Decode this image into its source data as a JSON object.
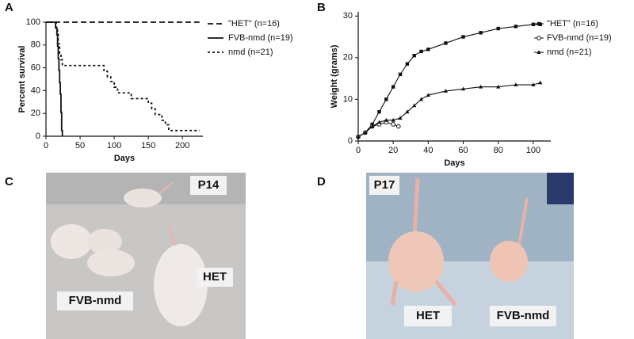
{
  "panel_labels": [
    "A",
    "B",
    "C",
    "D"
  ],
  "chart_data": [
    {
      "type": "step",
      "y_label": "Percent survival",
      "x_label": "Days",
      "xlim": [
        0,
        230
      ],
      "xticks": [
        0,
        50,
        100,
        150,
        200
      ],
      "ylim": [
        0,
        100
      ],
      "yticks": [
        0,
        20,
        40,
        60,
        80,
        100
      ],
      "series": [
        {
          "name": "\"HET\" (n=16)",
          "color": "#111111",
          "dash": "7 4",
          "x": [
            0,
            225
          ],
          "values": [
            100,
            100
          ]
        },
        {
          "name": "FVB-nmd (n=19)",
          "color": "#111111",
          "dash": "none",
          "x": [
            0,
            14,
            16,
            17,
            18,
            19,
            20,
            21,
            22,
            23,
            24
          ],
          "values": [
            100,
            95,
            89,
            79,
            68,
            58,
            47,
            37,
            21,
            5,
            0
          ]
        },
        {
          "name": "nmd (n=21)",
          "color": "#111111",
          "dash": "3 3",
          "x": [
            0,
            15,
            17,
            18,
            20,
            22,
            24,
            85,
            90,
            95,
            100,
            105,
            125,
            150,
            155,
            160,
            170,
            175,
            180,
            225
          ],
          "values": [
            100,
            95,
            90,
            81,
            71,
            67,
            62,
            57,
            52,
            48,
            43,
            38,
            33,
            29,
            24,
            19,
            14,
            10,
            5,
            5
          ]
        }
      ]
    },
    {
      "type": "line",
      "y_label": "Weight (grams)",
      "x_label": "Days",
      "xlim": [
        0,
        110
      ],
      "xticks": [
        0,
        20,
        40,
        60,
        80,
        100
      ],
      "ylim": [
        0,
        31
      ],
      "yticks": [
        0,
        10,
        20,
        30
      ],
      "series": [
        {
          "name": "\"HET\" (n=16)",
          "color": "#111111",
          "marker": "square",
          "x": [
            0,
            4,
            8,
            12,
            16,
            20,
            24,
            28,
            32,
            36,
            40,
            50,
            60,
            70,
            80,
            90,
            100,
            104
          ],
          "values": [
            1,
            2,
            4,
            7,
            10,
            13,
            16,
            18.5,
            20.5,
            21.5,
            22,
            23.5,
            25,
            26,
            27,
            27.5,
            28,
            28
          ]
        },
        {
          "name": "FVB-nmd (n=19)",
          "color": "#111111",
          "marker": "circle",
          "x": [
            0,
            4,
            8,
            12,
            16,
            20,
            23
          ],
          "values": [
            1,
            2,
            3.5,
            4,
            4.5,
            4,
            3.5
          ]
        },
        {
          "name": "nmd (n=21)",
          "color": "#111111",
          "marker": "triangle",
          "x": [
            0,
            4,
            8,
            12,
            16,
            20,
            24,
            28,
            32,
            36,
            40,
            50,
            60,
            70,
            80,
            90,
            100,
            104
          ],
          "values": [
            1,
            2,
            3.5,
            4.5,
            5,
            5,
            5.5,
            7,
            8.5,
            10,
            11,
            12,
            12.5,
            13,
            13,
            13.5,
            13.5,
            14
          ]
        }
      ]
    }
  ],
  "photos": [
    {
      "labels": [
        "P14",
        "HET",
        "FVB-nmd"
      ]
    },
    {
      "labels": [
        "P17",
        "HET",
        "FVB-nmd"
      ]
    }
  ]
}
